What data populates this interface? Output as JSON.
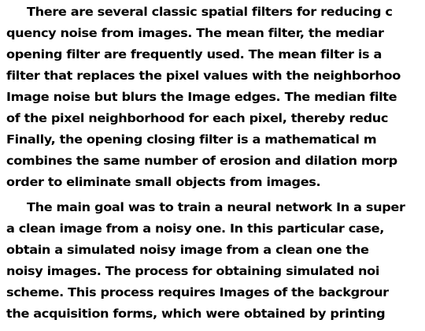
{
  "document": {
    "paragraphs": [
      {
        "lines": [
          "There are several classic spatial filters for reducing c",
          "quency noise from images. The mean filter, the mediar",
          "opening filter are frequently used. The mean filter is a",
          "filter that replaces the pixel values with the neighborhoo",
          "Image noise but blurs the Image edges. The median filte",
          "of the pixel neighborhood for each pixel, thereby reduc",
          "Finally, the opening closing filter is a mathematical m",
          "combines the same number of erosion and dilation morp",
          "order to eliminate small objects from images."
        ]
      },
      {
        "lines": [
          "The main goal was to train a neural network In a super",
          "a clean image from a noisy one. In this particular case,",
          "obtain a simulated noisy image from a clean one the",
          "noisy images. The process for obtaining simulated noi",
          "scheme. This process requires Images of the backgrour",
          "the acquisition forms, which were obtained by printing"
        ]
      }
    ]
  }
}
